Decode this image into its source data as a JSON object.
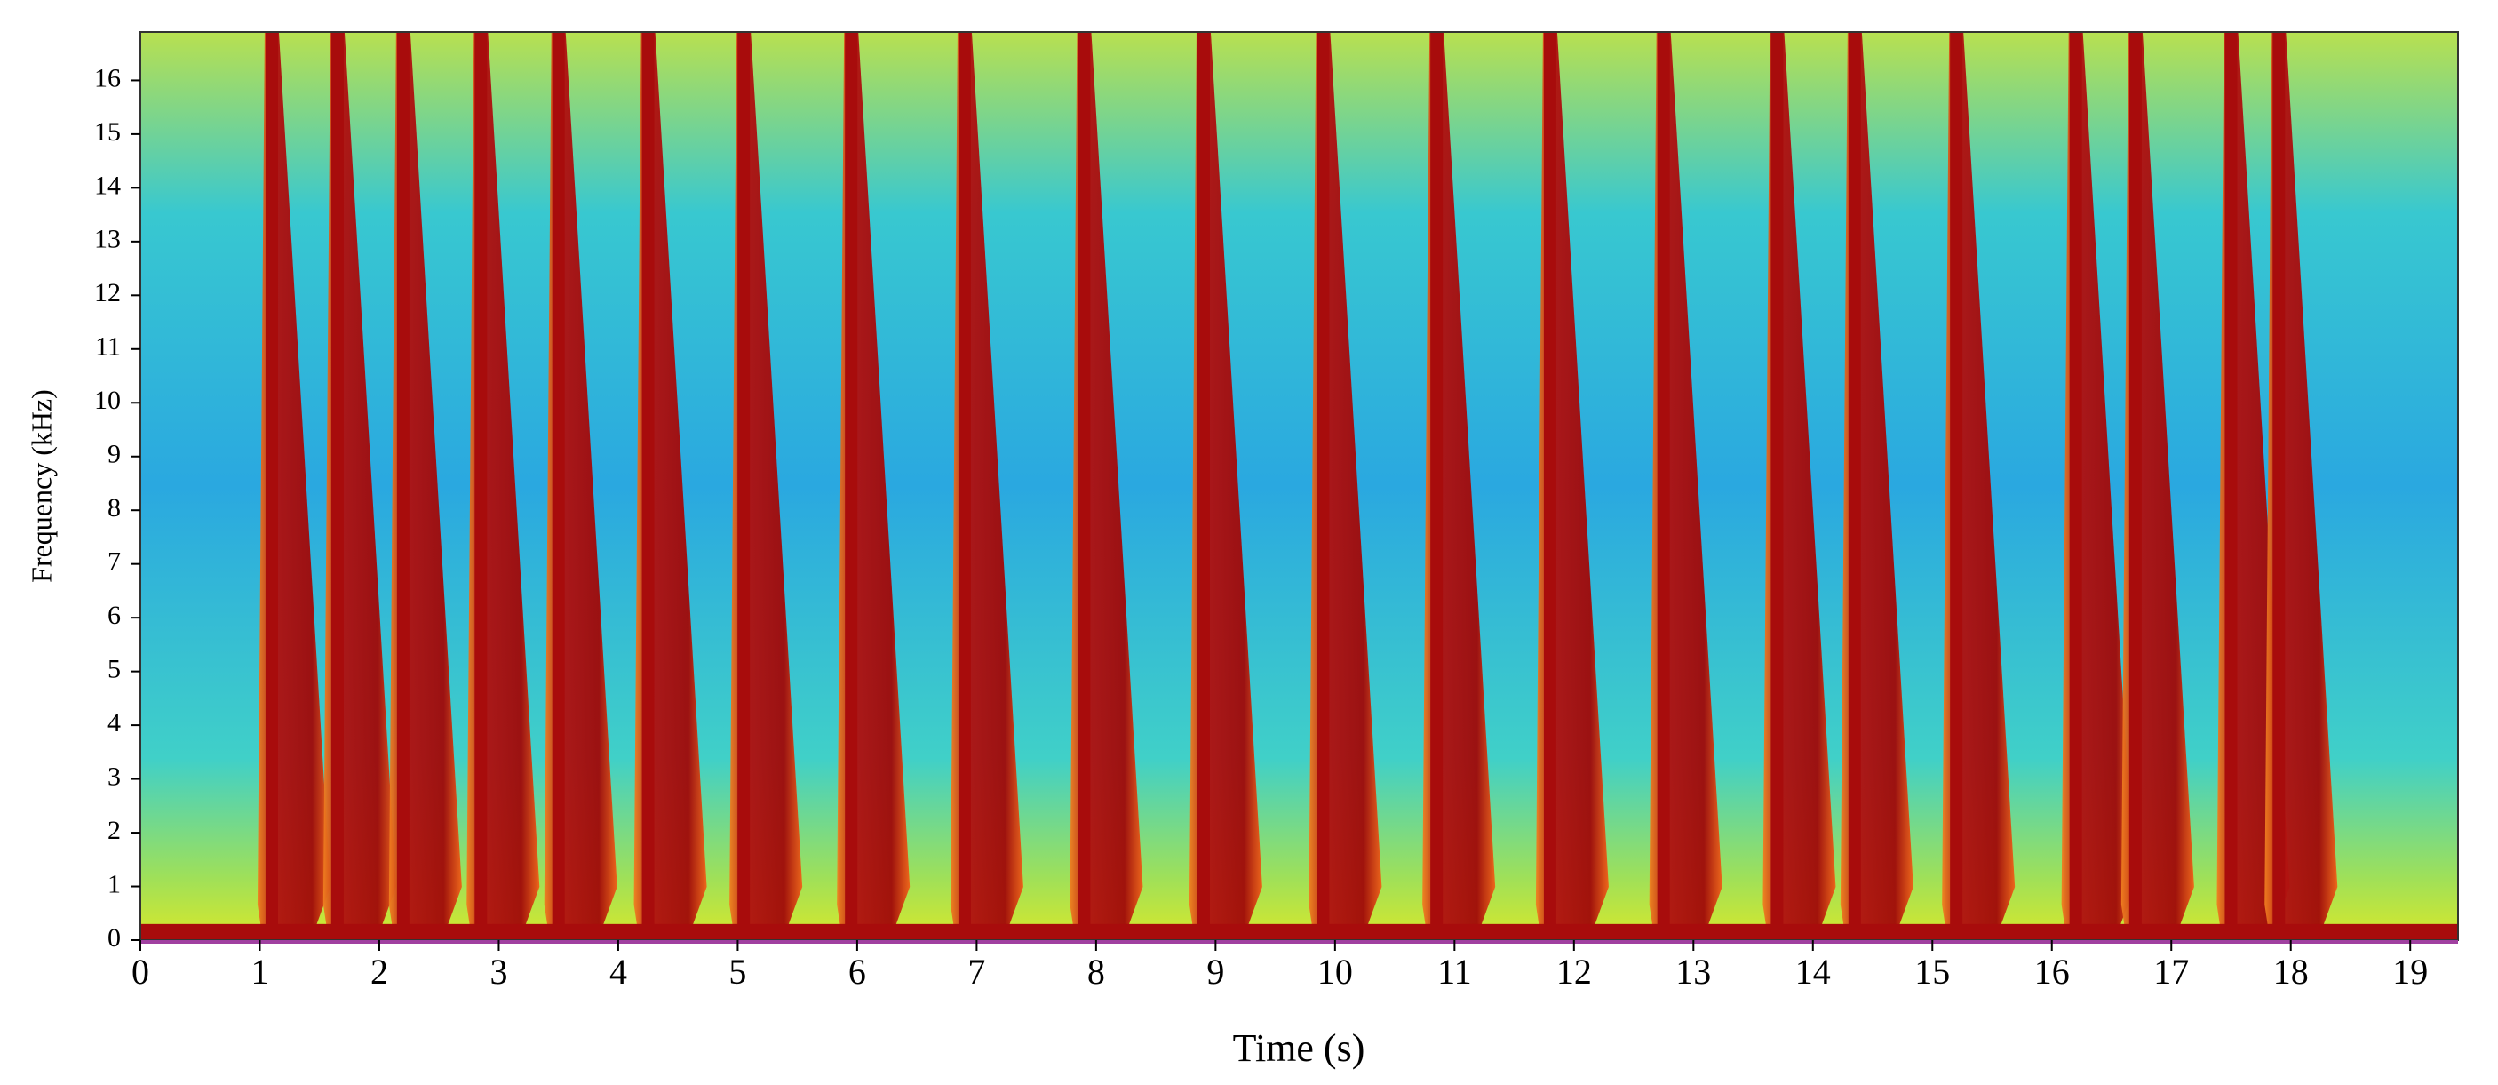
{
  "chart_data": {
    "type": "spectrogram",
    "xlabel": "Time (s)",
    "ylabel": "Frequency (kHz)",
    "x": [
      1.1,
      1.65,
      2.2,
      2.85,
      3.5,
      4.25,
      5.05,
      5.95,
      6.9,
      7.9,
      8.9,
      9.9,
      10.85,
      11.8,
      12.75,
      13.7,
      14.35,
      15.2,
      16.2,
      16.7,
      17.5,
      17.9
    ],
    "values": [
      16.9,
      16.9,
      16.9,
      16.9,
      16.9,
      16.9,
      16.9,
      16.9,
      16.9,
      16.9,
      16.9,
      16.9,
      16.9,
      16.9,
      16.9,
      16.9,
      16.9,
      16.9,
      16.9,
      16.9,
      16.9,
      16.9
    ],
    "color": "#a80c0c",
    "xlim": [
      0,
      19.4
    ],
    "xticks": [
      0,
      1,
      2,
      3,
      4,
      5,
      6,
      7,
      8,
      9,
      10,
      11,
      12,
      13,
      14,
      15,
      16,
      17,
      18,
      19
    ],
    "ylim": [
      0,
      16.9
    ],
    "yticks": [
      0,
      1,
      2,
      3,
      4,
      5,
      6,
      7,
      8,
      9,
      10,
      11,
      12,
      13,
      14,
      15,
      16
    ]
  }
}
